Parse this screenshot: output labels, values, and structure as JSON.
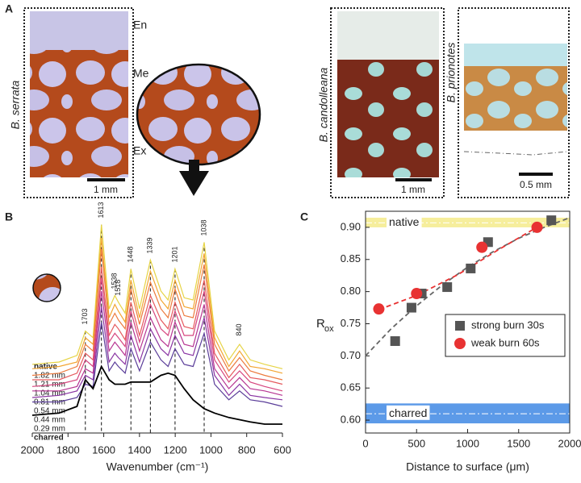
{
  "panel_a": {
    "panel_label": "A",
    "layers": [
      "En",
      "Me",
      "Ex"
    ],
    "species": [
      "B. serrata",
      "B. candolleana",
      "B. prionotes"
    ],
    "scale_bars": [
      "1 mm",
      "1 mm",
      "0.5 mm"
    ]
  },
  "chart_data": [
    {
      "type": "line",
      "panel_label": "B",
      "x_label": "Wavenumber (cm⁻¹)",
      "x": [
        2000,
        1850,
        1750,
        1703,
        1660,
        1613,
        1570,
        1538,
        1518,
        1480,
        1448,
        1400,
        1339,
        1280,
        1240,
        1201,
        1150,
        1100,
        1038,
        980,
        900,
        840,
        780,
        700,
        600
      ],
      "xlim": [
        2000,
        600
      ],
      "xticks": [
        2000,
        1800,
        1600,
        1400,
        1200,
        1000,
        800,
        600
      ],
      "ylim": [
        0,
        10
      ],
      "series": [
        {
          "name": "native",
          "color": "#e6d445",
          "values": [
            3.1,
            3.2,
            3.5,
            4.6,
            4.3,
            9.4,
            5.6,
            6.2,
            5.9,
            5.4,
            7.4,
            5.6,
            7.8,
            6.4,
            6.0,
            7.4,
            6.1,
            6.0,
            8.6,
            4.6,
            3.3,
            4.0,
            3.3,
            3.1,
            2.9
          ]
        },
        {
          "name": "1.82 mm",
          "color": "#f2a531",
          "values": [
            2.9,
            3.0,
            3.2,
            4.3,
            4.0,
            8.8,
            5.2,
            5.8,
            5.5,
            5.0,
            6.9,
            5.2,
            7.3,
            6.0,
            5.6,
            6.9,
            5.7,
            5.6,
            8.1,
            4.3,
            3.0,
            3.7,
            3.0,
            2.9,
            2.7
          ]
        },
        {
          "name": "1.21 mm",
          "color": "#ec7b3e",
          "values": [
            2.6,
            2.7,
            3.0,
            4.0,
            3.7,
            8.3,
            4.9,
            5.4,
            5.1,
            4.7,
            6.5,
            4.9,
            6.8,
            5.6,
            5.2,
            6.5,
            5.3,
            5.2,
            7.6,
            4.0,
            2.8,
            3.4,
            2.8,
            2.6,
            2.4
          ]
        },
        {
          "name": "1.04 mm",
          "color": "#e55a5e",
          "values": [
            2.4,
            2.4,
            2.7,
            3.6,
            3.3,
            7.5,
            4.4,
            4.9,
            4.7,
            4.2,
            5.9,
            4.4,
            6.2,
            5.1,
            4.7,
            5.9,
            4.8,
            4.7,
            6.9,
            3.6,
            2.5,
            3.1,
            2.5,
            2.4,
            2.2
          ]
        },
        {
          "name": "0.81 mm",
          "color": "#d6457e",
          "values": [
            2.1,
            2.2,
            2.4,
            3.3,
            3.0,
            7.0,
            4.1,
            4.5,
            4.3,
            3.9,
            5.5,
            4.1,
            5.8,
            4.7,
            4.4,
            5.5,
            4.4,
            4.4,
            6.4,
            3.3,
            2.3,
            2.8,
            2.3,
            2.1,
            1.9
          ]
        },
        {
          "name": "0.54 mm",
          "color": "#b73592",
          "values": [
            1.9,
            1.9,
            2.1,
            2.9,
            2.7,
            6.4,
            3.7,
            4.1,
            3.9,
            3.5,
            5.0,
            3.7,
            5.2,
            4.2,
            3.9,
            5.0,
            4.0,
            3.9,
            5.8,
            2.9,
            2.0,
            2.5,
            2.0,
            1.9,
            1.7
          ]
        },
        {
          "name": "0.44 mm",
          "color": "#8a35a3",
          "values": [
            1.6,
            1.7,
            1.9,
            2.6,
            2.4,
            5.7,
            3.2,
            3.6,
            3.4,
            3.1,
            4.4,
            3.2,
            4.7,
            3.8,
            3.5,
            4.4,
            3.6,
            3.5,
            5.2,
            2.6,
            1.7,
            2.2,
            1.7,
            1.6,
            1.5
          ]
        },
        {
          "name": "0.29 mm",
          "color": "#5a3d99",
          "values": [
            1.4,
            1.4,
            1.6,
            2.2,
            2.1,
            5.0,
            2.8,
            3.2,
            3.0,
            2.7,
            3.8,
            2.8,
            4.1,
            3.3,
            3.0,
            3.8,
            3.1,
            3.0,
            4.5,
            2.2,
            1.5,
            1.9,
            1.5,
            1.4,
            1.2
          ]
        },
        {
          "name": "charred",
          "color": "#000000",
          "values": [
            0.8,
            0.9,
            1.2,
            2.4,
            2.0,
            3.0,
            2.4,
            2.2,
            2.2,
            2.2,
            2.3,
            2.3,
            2.3,
            2.6,
            2.7,
            2.6,
            2.0,
            1.5,
            1.1,
            0.9,
            0.7,
            0.6,
            0.5,
            0.4,
            0.4
          ]
        }
      ],
      "annotations": [
        1703,
        1613,
        1538,
        1518,
        1448,
        1339,
        1201,
        1038,
        840
      ],
      "dashed": [
        true,
        true,
        false,
        false,
        true,
        true,
        true,
        true,
        false
      ]
    },
    {
      "type": "scatter",
      "panel_label": "C",
      "x_label": "Distance to surface (μm)",
      "y_label": "R",
      "y_label_sub": "ox",
      "xlim": [
        0,
        2000
      ],
      "xticks": [
        0,
        500,
        1000,
        1500,
        2000
      ],
      "ylim": [
        0.58,
        0.925
      ],
      "yticks": [
        {
          "value": 0.6,
          "label": "0.60"
        },
        0.65,
        {
          "value": 0.7,
          "label": "0.70"
        },
        0.75,
        {
          "value": 0.8,
          "label": "0.80"
        },
        0.85,
        {
          "value": 0.9,
          "label": "0.90"
        }
      ],
      "bands": [
        {
          "label": "native",
          "range": [
            0.9,
            0.915
          ],
          "center": 0.907,
          "color": "#f6ee9c"
        },
        {
          "label": "charred",
          "range": [
            0.595,
            0.626
          ],
          "center": 0.61,
          "color": "#5c9ae8"
        }
      ],
      "series": [
        {
          "name": "strong burn 30s",
          "color": "#555555",
          "marker": "square",
          "x": [
            290,
            450,
            550,
            800,
            1030,
            1200,
            1820
          ],
          "values": [
            0.723,
            0.775,
            0.797,
            0.807,
            0.836,
            0.877,
            0.911
          ]
        },
        {
          "name": "weak burn 60s",
          "color": "#e83232",
          "marker": "circle",
          "x": [
            130,
            500,
            1140,
            1680
          ],
          "values": [
            0.773,
            0.797,
            0.869,
            0.9
          ]
        }
      ],
      "fits": [
        {
          "color": "#666666",
          "x": [
            0,
            250,
            500,
            750,
            1000,
            1250,
            1500,
            1750,
            2000
          ],
          "values": [
            0.7,
            0.742,
            0.778,
            0.81,
            0.838,
            0.862,
            0.883,
            0.9,
            0.915
          ]
        },
        {
          "color": "#e83232",
          "x": [
            130,
            500,
            900,
            1300,
            1700
          ],
          "values": [
            0.772,
            0.794,
            0.826,
            0.865,
            0.902
          ]
        }
      ]
    }
  ]
}
